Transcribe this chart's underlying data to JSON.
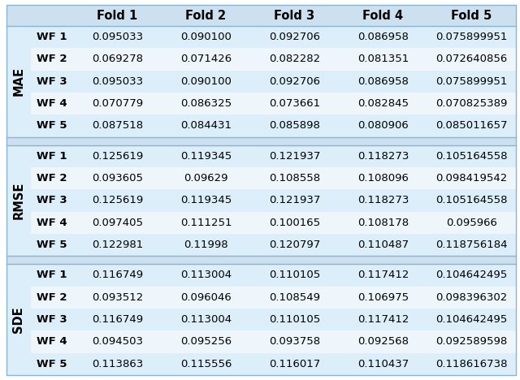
{
  "col_headers": [
    "Fold 1",
    "Fold 2",
    "Fold 3",
    "Fold 4",
    "Fold 5"
  ],
  "sections": [
    {
      "label": "MAE",
      "rows": [
        [
          "WF 1",
          "0.095033",
          "0.090100",
          "0.092706",
          "0.086958",
          "0.075899951"
        ],
        [
          "WF 2",
          "0.069278",
          "0.071426",
          "0.082282",
          "0.081351",
          "0.072640856"
        ],
        [
          "WF 3",
          "0.095033",
          "0.090100",
          "0.092706",
          "0.086958",
          "0.075899951"
        ],
        [
          "WF 4",
          "0.070779",
          "0.086325",
          "0.073661",
          "0.082845",
          "0.070825389"
        ],
        [
          "WF 5",
          "0.087518",
          "0.084431",
          "0.085898",
          "0.080906",
          "0.085011657"
        ]
      ]
    },
    {
      "label": "RMSE",
      "rows": [
        [
          "WF 1",
          "0.125619",
          "0.119345",
          "0.121937",
          "0.118273",
          "0.105164558"
        ],
        [
          "WF 2",
          "0.093605",
          "0.09629",
          "0.108558",
          "0.108096",
          "0.098419542"
        ],
        [
          "WF 3",
          "0.125619",
          "0.119345",
          "0.121937",
          "0.118273",
          "0.105164558"
        ],
        [
          "WF 4",
          "0.097405",
          "0.111251",
          "0.100165",
          "0.108178",
          "0.095966"
        ],
        [
          "WF 5",
          "0.122981",
          "0.11998",
          "0.120797",
          "0.110487",
          "0.118756184"
        ]
      ]
    },
    {
      "label": "SDE",
      "rows": [
        [
          "WF 1",
          "0.116749",
          "0.113004",
          "0.110105",
          "0.117412",
          "0.104642495"
        ],
        [
          "WF 2",
          "0.093512",
          "0.096046",
          "0.108549",
          "0.106975",
          "0.098396302"
        ],
        [
          "WF 3",
          "0.116749",
          "0.113004",
          "0.110105",
          "0.117412",
          "0.104642495"
        ],
        [
          "WF 4",
          "0.094503",
          "0.095256",
          "0.093758",
          "0.092568",
          "0.092589598"
        ],
        [
          "WF 5",
          "0.113863",
          "0.115556",
          "0.116017",
          "0.110437",
          "0.118616738"
        ]
      ]
    }
  ],
  "header_bg": "#cce0f0",
  "row_bg_even": "#dceef9",
  "row_bg_odd": "#eef6fc",
  "gap_bg": "#cce0f0",
  "border_color": "#8ab4d4",
  "header_fontsize": 10.5,
  "cell_fontsize": 9.5,
  "label_fontsize": 10.5,
  "fig_bg": "#ffffff"
}
